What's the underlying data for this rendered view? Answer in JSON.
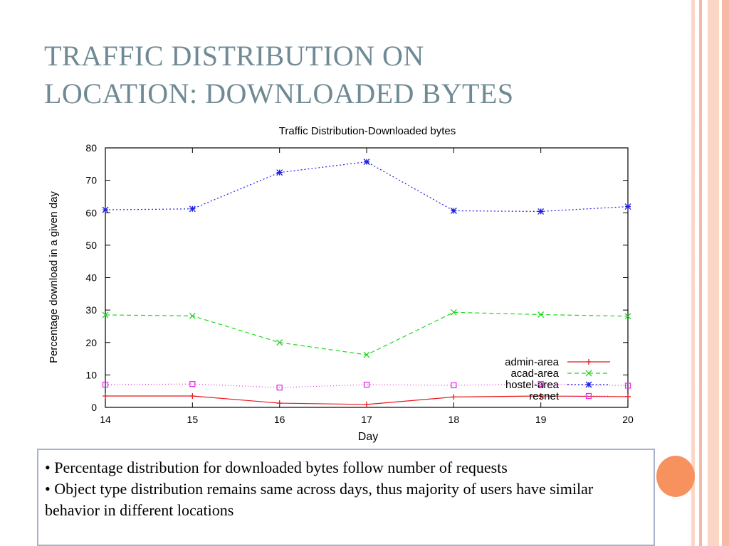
{
  "slide": {
    "title_line1": "TRAFFIC DISTRIBUTION ON",
    "title_line2": "LOCATION: DOWNLOADED BYTES",
    "bullets": [
      "• Percentage distribution for downloaded bytes follow number of requests",
      "• Object type distribution remains same across days, thus majority of users have similar behavior in different locations"
    ]
  },
  "colors": {
    "title": "#6f8a94",
    "accent_circle": "#f7925e"
  },
  "chart_data": {
    "type": "line",
    "title": "Traffic Distribution-Downloaded bytes",
    "xlabel": "Day",
    "ylabel": "Percentage download in a given day",
    "x": [
      14,
      15,
      16,
      17,
      18,
      19,
      20
    ],
    "xlim": [
      14,
      20
    ],
    "ylim": [
      0,
      80
    ],
    "xticks": [
      "14",
      "15",
      "16",
      "17",
      "18",
      "19",
      "20"
    ],
    "yticks": [
      "0",
      "10",
      "20",
      "30",
      "40",
      "50",
      "60",
      "70",
      "80"
    ],
    "grid": false,
    "legend_position": "bottom-right",
    "series": [
      {
        "name": "admin-area",
        "color": "#e8191c",
        "dash": "",
        "marker": "plus",
        "values": [
          3.5,
          3.5,
          1.3,
          0.9,
          3.2,
          3.5,
          3.3
        ]
      },
      {
        "name": "acad-area",
        "color": "#1fd81f",
        "dash": "6,4",
        "marker": "cross",
        "values": [
          28.5,
          28.2,
          20.0,
          16.2,
          29.3,
          28.6,
          28.1
        ]
      },
      {
        "name": "hostel-area",
        "color": "#1e1ee6",
        "dash": "2,3",
        "marker": "star",
        "values": [
          60.9,
          61.2,
          72.4,
          75.7,
          60.6,
          60.4,
          61.9
        ]
      },
      {
        "name": "resnet",
        "color": "#e335e3",
        "dash": "1,3",
        "marker": "square",
        "values": [
          7.0,
          7.2,
          6.1,
          7.0,
          6.8,
          7.2,
          6.7
        ]
      }
    ]
  }
}
